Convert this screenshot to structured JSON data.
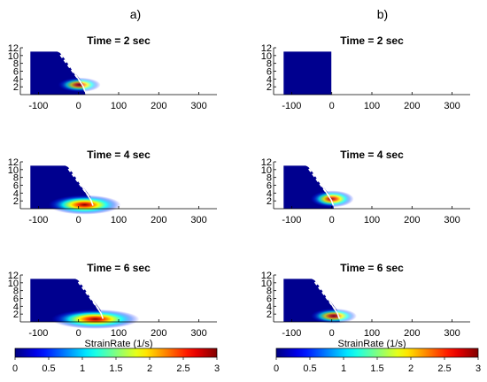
{
  "chart_data": {
    "type": "heatmap",
    "panel_labels": [
      "a)",
      "b)"
    ],
    "panels": [
      {
        "col": 0,
        "row": 0,
        "title": "Time = 2 sec",
        "front_x": 17,
        "hotspot": {
          "x": 2,
          "y": 2.5,
          "intensity": 0.45
        }
      },
      {
        "col": 0,
        "row": 1,
        "title": "Time = 4 sec",
        "front_x": 37,
        "hotspot": {
          "x": 15,
          "y": 1.0,
          "intensity": 1.0
        }
      },
      {
        "col": 0,
        "row": 2,
        "title": "Time = 6 sec",
        "front_x": 62,
        "hotspot": {
          "x": 42,
          "y": 0.7,
          "intensity": 1.0
        }
      },
      {
        "col": 1,
        "row": 0,
        "title": "Time = 2 sec",
        "front_x": 0,
        "hotspot": null
      },
      {
        "col": 1,
        "row": 1,
        "title": "Time = 4 sec",
        "front_x": 5,
        "hotspot": {
          "x": 1,
          "y": 2.5,
          "intensity": 0.7
        }
      },
      {
        "col": 1,
        "row": 2,
        "title": "Time = 6 sec",
        "front_x": 20,
        "hotspot": {
          "x": 5,
          "y": 1.5,
          "intensity": 0.5
        }
      }
    ],
    "xlim": [
      -145,
      345
    ],
    "ylim": [
      0,
      12
    ],
    "x_ticks": [
      -100,
      0,
      100,
      200,
      300
    ],
    "x_tick_labels": [
      "-100",
      "0",
      "100",
      "200",
      "300"
    ],
    "y_ticks": [
      2,
      4,
      6,
      8,
      10,
      12
    ],
    "y_tick_labels": [
      "2",
      "4",
      "6",
      "8",
      "10",
      "12"
    ],
    "xlabel": "StrainRate (1/s)",
    "colorbar": {
      "range": [
        0,
        3
      ],
      "ticks": [
        0,
        0.5,
        1,
        1.5,
        2,
        2.5,
        3
      ],
      "tick_labels": [
        "0",
        "0.5",
        "1",
        "1.5",
        "2",
        "2.5",
        "3"
      ],
      "colormap": "jet"
    },
    "colors": {
      "field": "#00008f",
      "outline": "#ffffff"
    }
  }
}
